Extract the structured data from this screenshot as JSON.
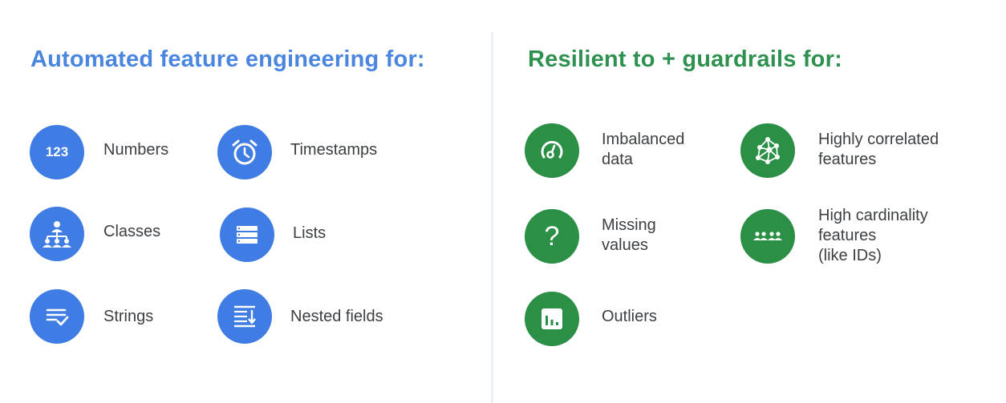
{
  "left": {
    "title": "Automated feature engineering for:",
    "items": [
      {
        "icon": "number-123-icon",
        "icon_text": "123",
        "label": "Numbers"
      },
      {
        "icon": "alarm-clock-icon",
        "label": "Timestamps"
      },
      {
        "icon": "hierarchy-people-icon",
        "label": "Classes"
      },
      {
        "icon": "list-rows-icon",
        "label": "Lists"
      },
      {
        "icon": "text-check-icon",
        "label": "Strings"
      },
      {
        "icon": "nested-fields-icon",
        "label": "Nested fields"
      }
    ]
  },
  "right": {
    "title": "Resilient to + guardrails for:",
    "items": [
      {
        "icon": "gauge-icon",
        "label_lines": [
          "Imbalanced",
          "data"
        ]
      },
      {
        "icon": "network-graph-icon",
        "label_lines": [
          "Highly correlated",
          "features"
        ]
      },
      {
        "icon": "question-mark-icon",
        "label_lines": [
          "Missing",
          "values"
        ]
      },
      {
        "icon": "people-group-icon",
        "label_lines": [
          "High cardinality",
          "features",
          "(like IDs)"
        ]
      },
      {
        "icon": "bar-chart-icon",
        "label_lines": [
          "Outliers"
        ]
      }
    ]
  },
  "colors": {
    "left_title": "#4a86e0",
    "right_title": "#2e9150",
    "blue_circle": "#3f7ce3",
    "green_circle": "#2b8f46"
  }
}
